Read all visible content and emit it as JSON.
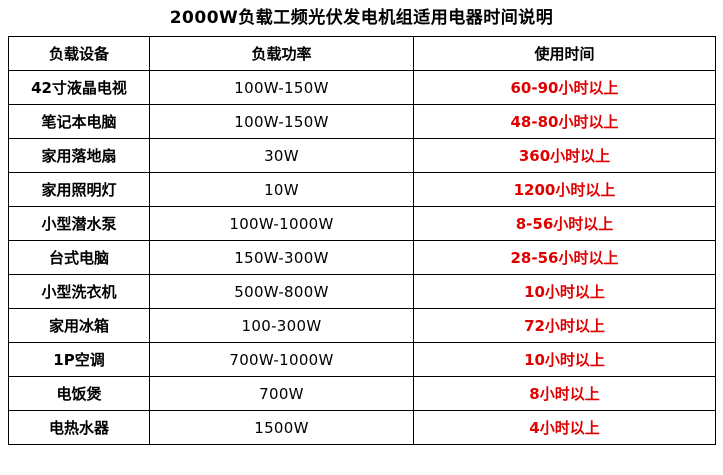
{
  "title": "2000W负载工频光伏发电机组适用电器时间说明",
  "colors": {
    "duration_text": "#e00000",
    "border": "#000000"
  },
  "table": {
    "headers": [
      "负载设备",
      "负载功率",
      "使用时间"
    ],
    "rows": [
      {
        "device": "42寸液晶电视",
        "power": "100W-150W",
        "duration": "60-90小时以上"
      },
      {
        "device": "笔记本电脑",
        "power": "100W-150W",
        "duration": "48-80小时以上"
      },
      {
        "device": "家用落地扇",
        "power": "30W",
        "duration": "360小时以上"
      },
      {
        "device": "家用照明灯",
        "power": "10W",
        "duration": "1200小时以上"
      },
      {
        "device": "小型潜水泵",
        "power": "100W-1000W",
        "duration": "8-56小时以上"
      },
      {
        "device": "台式电脑",
        "power": "150W-300W",
        "duration": "28-56小时以上"
      },
      {
        "device": "小型洗衣机",
        "power": "500W-800W",
        "duration": "10小时以上"
      },
      {
        "device": "家用冰箱",
        "power": "100-300W",
        "duration": "72小时以上"
      },
      {
        "device": "1P空调",
        "power": "700W-1000W",
        "duration": "10小时以上"
      },
      {
        "device": "电饭煲",
        "power": "700W",
        "duration": "8小时以上"
      },
      {
        "device": "电热水器",
        "power": "1500W",
        "duration": "4小时以上"
      }
    ]
  }
}
